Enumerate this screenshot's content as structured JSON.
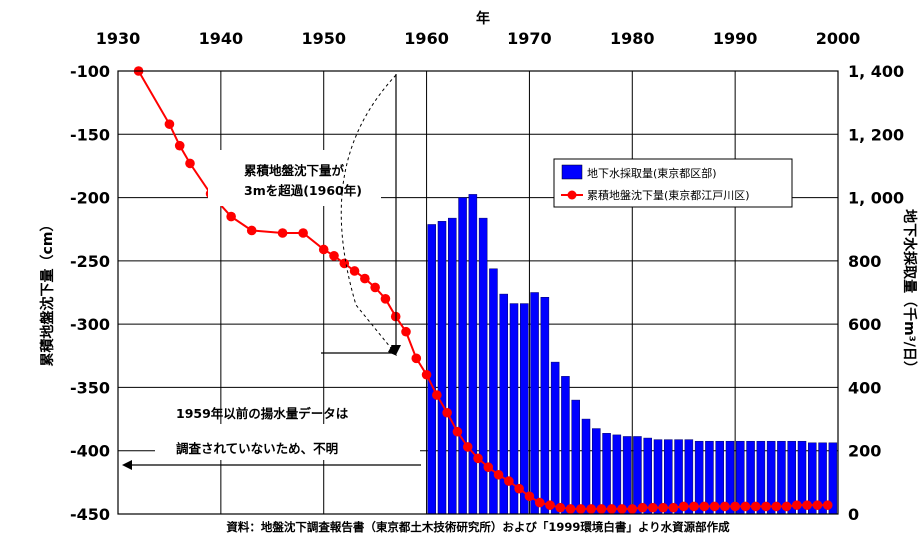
{
  "chart_data": {
    "type": "bar+line",
    "title": "",
    "xlabel": "年",
    "ylabel_left": "累積地盤沈下量（cm）",
    "ylabel_right": "地下水採取量（千m³/日）",
    "x_range": [
      1930,
      2000
    ],
    "x_ticks": [
      "1930",
      "1940",
      "1950",
      "1960",
      "1970",
      "1980",
      "1990",
      "2000"
    ],
    "y_left_range": [
      -450,
      -100
    ],
    "y_left_ticks": [
      "-100",
      "-150",
      "-200",
      "-250",
      "-300",
      "-350",
      "-400",
      "-450"
    ],
    "y_left_tick_values": [
      -100,
      -150,
      -200,
      -250,
      -300,
      -350,
      -400,
      -450
    ],
    "y_right_range": [
      0,
      1400
    ],
    "y_right_ticks": [
      "1, 400",
      "1, 200",
      "1, 000",
      "800",
      "600",
      "400",
      "200",
      "0"
    ],
    "y_right_tick_values": [
      1400,
      1200,
      1000,
      800,
      600,
      400,
      200,
      0
    ],
    "grid": true,
    "legend_position": "top-right",
    "series": [
      {
        "name": "地下水採取量(東京都区部)",
        "type": "bar",
        "axis": "right",
        "color": "#0000ff",
        "x": [
          1960,
          1961,
          1962,
          1963,
          1964,
          1965,
          1966,
          1967,
          1968,
          1969,
          1970,
          1971,
          1972,
          1973,
          1974,
          1975,
          1976,
          1977,
          1978,
          1979,
          1980,
          1981,
          1982,
          1983,
          1984,
          1985,
          1986,
          1987,
          1988,
          1989,
          1990,
          1991,
          1992,
          1993,
          1994,
          1995,
          1996,
          1997,
          1998,
          1999
        ],
        "values": [
          915,
          925,
          935,
          1000,
          1010,
          935,
          775,
          695,
          665,
          665,
          700,
          685,
          480,
          435,
          360,
          300,
          270,
          255,
          250,
          245,
          245,
          240,
          235,
          235,
          235,
          235,
          230,
          230,
          230,
          230,
          230,
          230,
          230,
          230,
          230,
          230,
          230,
          225,
          225,
          225
        ]
      },
      {
        "name": "累積地盤沈下量(東京都江戸川区)",
        "type": "line",
        "axis": "left",
        "color": "#ff0000",
        "x": [
          1932,
          1935,
          1936,
          1937,
          1939,
          1941,
          1943,
          1946,
          1948,
          1950,
          1951,
          1952,
          1953,
          1954,
          1955,
          1956,
          1957,
          1958,
          1959,
          1960,
          1961,
          1962,
          1963,
          1964,
          1965,
          1966,
          1967,
          1968,
          1969,
          1970,
          1971,
          1972,
          1973,
          1974,
          1975,
          1976,
          1977,
          1978,
          1979,
          1980,
          1981,
          1982,
          1983,
          1984,
          1985,
          1986,
          1987,
          1988,
          1989,
          1990,
          1991,
          1992,
          1993,
          1994,
          1995,
          1996,
          1997,
          1998,
          1999
        ],
        "values": [
          -100,
          -142,
          -159,
          -173,
          -197,
          -215,
          -226,
          -228,
          -228,
          -241,
          -246,
          -252,
          -258,
          -264,
          -271,
          -280,
          -294,
          -306,
          -327,
          -340,
          -356,
          -370,
          -385,
          -397,
          -406,
          -413,
          -419,
          -424,
          -430,
          -436,
          -441,
          -443,
          -445,
          -446,
          -446,
          -446,
          -446,
          -446,
          -446,
          -446,
          -445,
          -445,
          -445,
          -445,
          -444,
          -444,
          -444,
          -444,
          -444,
          -444,
          -444,
          -444,
          -444,
          -444,
          -444,
          -443,
          -443,
          -443,
          -443
        ]
      }
    ],
    "annotations": [
      "累積地盤沈下量が",
      "3mを超過(1960年)",
      "1959年以前の揚水量データは",
      "調査されていないため、不明"
    ],
    "source": "資料：地盤沈下調査報告書（東京都土木技術研究所）および「1999環境白書」より水資源部作成"
  }
}
